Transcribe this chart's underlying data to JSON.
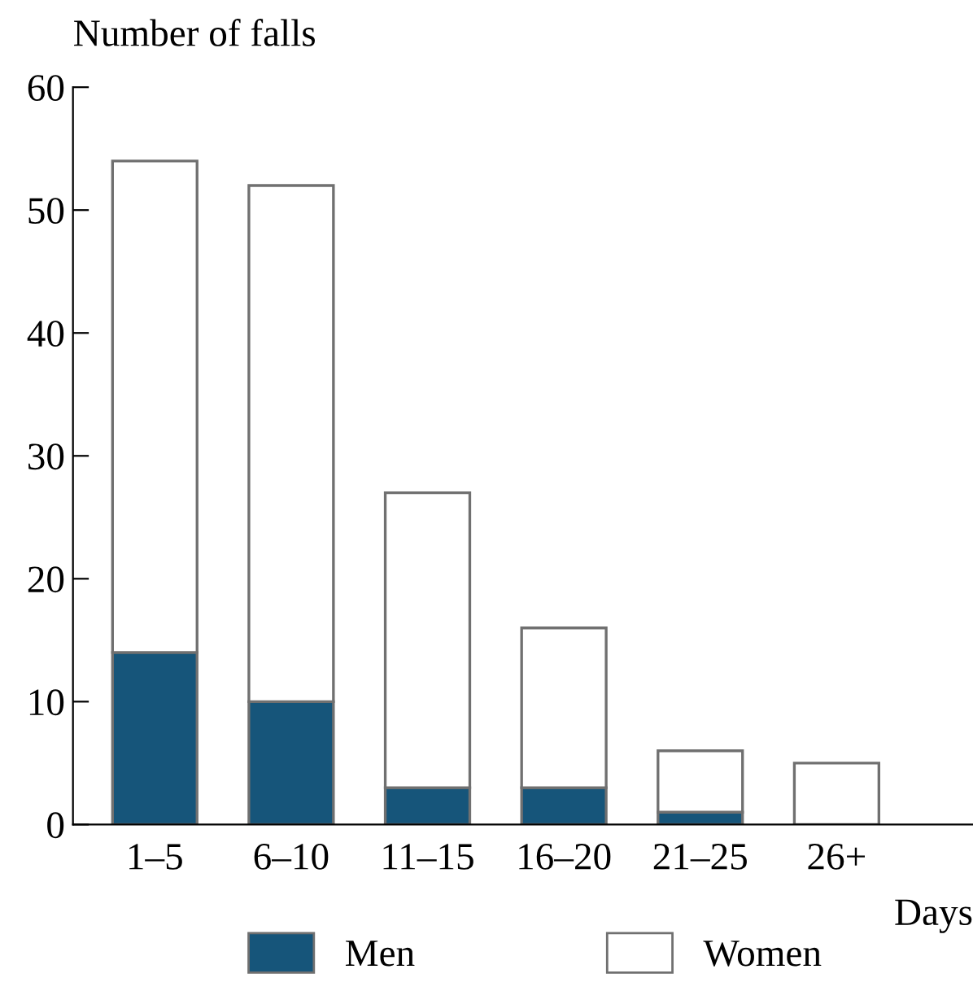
{
  "chart_data": {
    "type": "bar",
    "stacked": true,
    "ylabel": "Number of falls",
    "xlabel": "Days",
    "categories": [
      "1–5",
      "6–10",
      "11–15",
      "16–20",
      "21–25",
      "26+"
    ],
    "series": [
      {
        "name": "Men",
        "color": "#16557a",
        "values": [
          14,
          10,
          3,
          3,
          1,
          0
        ]
      },
      {
        "name": "Women",
        "color": "#ffffff",
        "values": [
          40,
          42,
          24,
          13,
          5,
          5
        ]
      }
    ],
    "ylim": [
      0,
      60
    ],
    "yticks": [
      0,
      10,
      20,
      30,
      40,
      50,
      60
    ],
    "grid": false,
    "legend": "bottom"
  }
}
